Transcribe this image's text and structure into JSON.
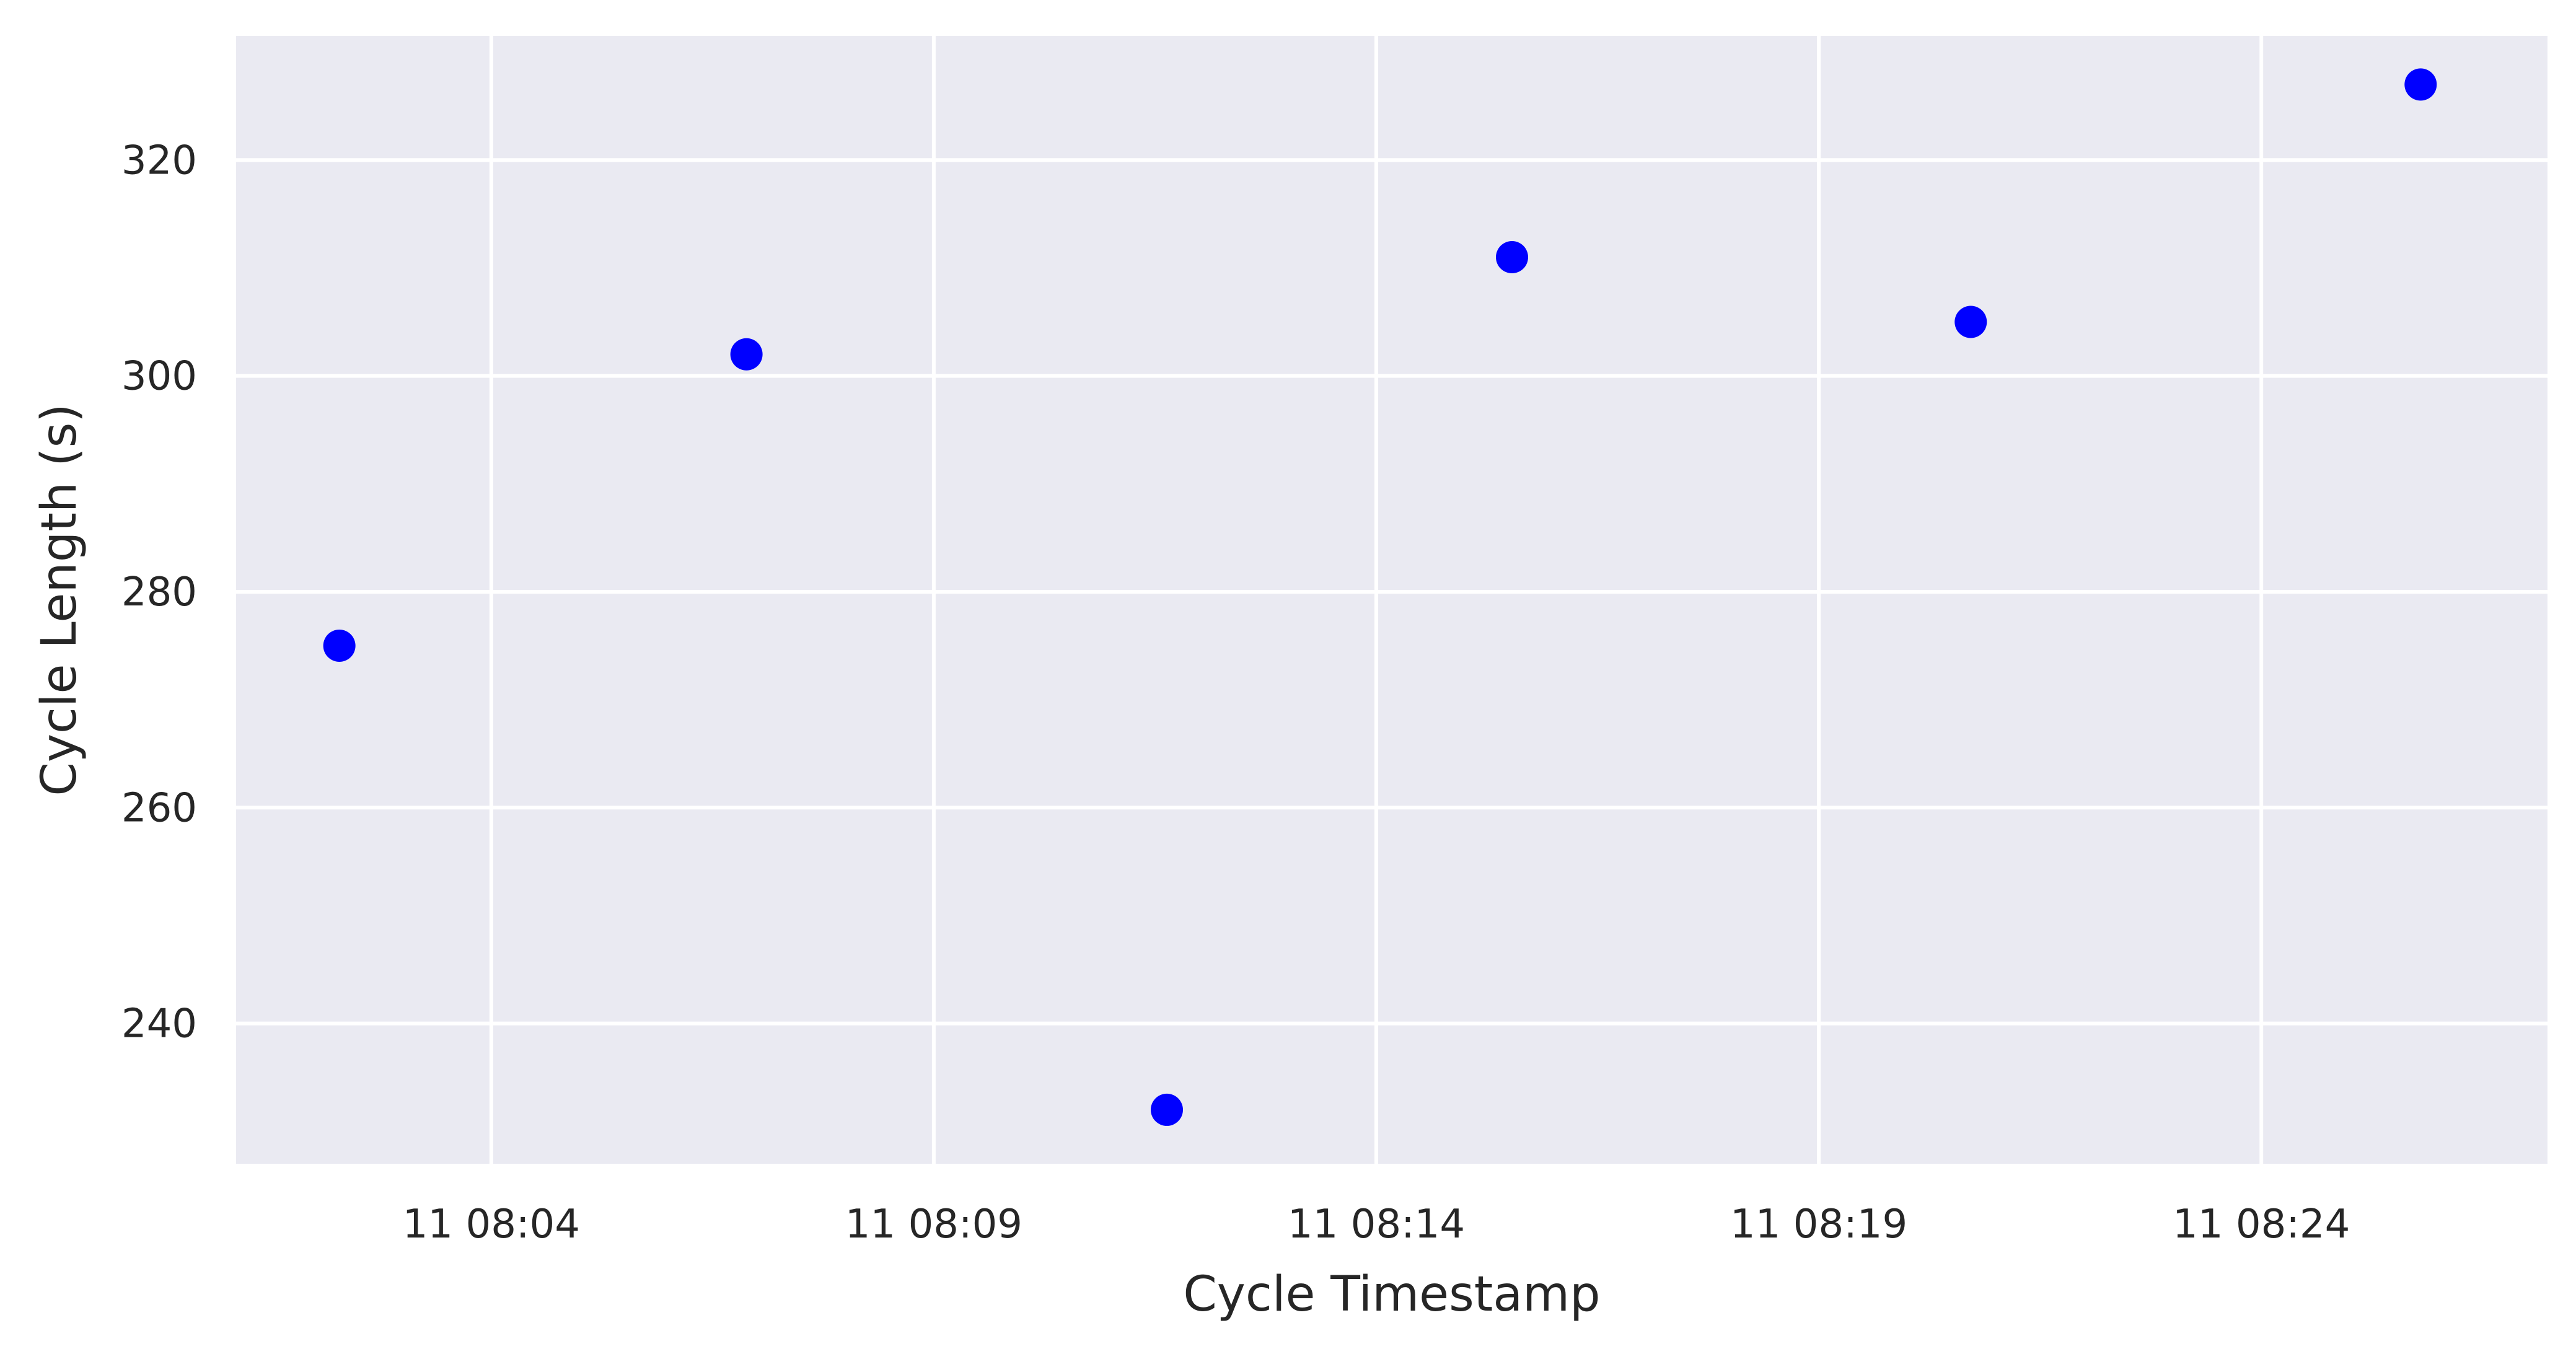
{
  "chart_data": {
    "type": "scatter",
    "title": "",
    "xlabel": "Cycle Timestamp",
    "ylabel": "Cycle Length (s)",
    "x_ticks": [
      "11 08:04",
      "11 08:09",
      "11 08:14",
      "11 08:19",
      "11 08:24"
    ],
    "x_tick_values": [
      "08:04",
      "08:09",
      "08:14",
      "08:19",
      "08:24"
    ],
    "y_ticks": [
      240,
      260,
      280,
      300,
      320
    ],
    "xlim": [
      "08:01:07",
      "08:27:14"
    ],
    "ylim": [
      227,
      331.5
    ],
    "grid": true,
    "colors": {
      "background": "#eaeaf2",
      "grid": "#ffffff",
      "marker": "#0000ff",
      "text": "#262626"
    },
    "series": [
      {
        "x": [
          "08:02:17",
          "08:06:53",
          "08:11:38",
          "08:15:32",
          "08:20:43",
          "08:25:48"
        ],
        "y": [
          275,
          302,
          232,
          311,
          305,
          327
        ]
      }
    ]
  }
}
